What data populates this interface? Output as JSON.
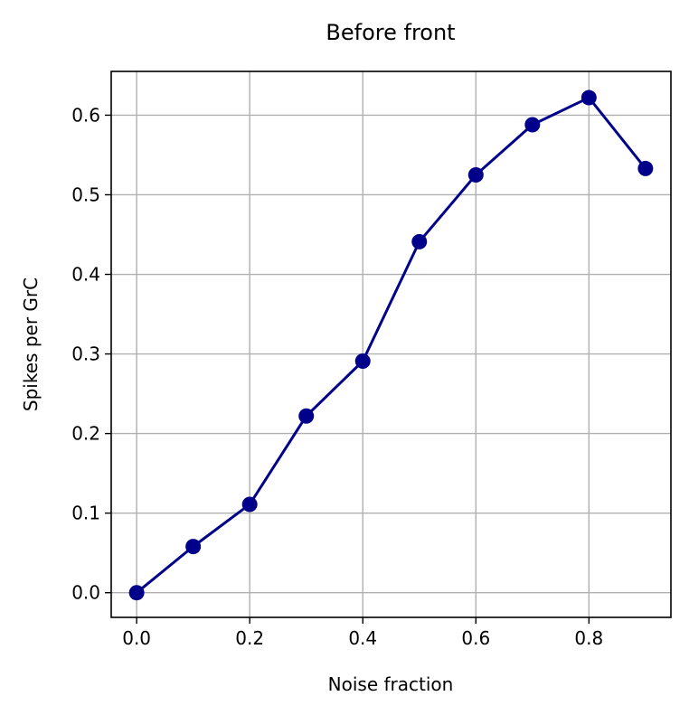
{
  "chart_data": {
    "type": "line",
    "title": "Before front",
    "xlabel": "Noise fraction",
    "ylabel": "Spikes per GrC",
    "xlim": [
      -0.045,
      0.945
    ],
    "ylim": [
      -0.031,
      0.655
    ],
    "x_ticks": [
      0.0,
      0.2,
      0.4,
      0.6,
      0.8
    ],
    "x_tick_labels": [
      "0.0",
      "0.2",
      "0.4",
      "0.6",
      "0.8"
    ],
    "y_ticks": [
      0.0,
      0.1,
      0.2,
      0.3,
      0.4,
      0.5,
      0.6
    ],
    "y_tick_labels": [
      "0.0",
      "0.1",
      "0.2",
      "0.3",
      "0.4",
      "0.5",
      "0.6"
    ],
    "grid": true,
    "line_color": "#00008b",
    "series": [
      {
        "x": [
          0.0,
          0.1,
          0.2,
          0.3,
          0.4,
          0.5,
          0.6,
          0.7,
          0.8,
          0.9
        ],
        "values": [
          0.0,
          0.058,
          0.111,
          0.222,
          0.291,
          0.441,
          0.525,
          0.588,
          0.622,
          0.533
        ]
      }
    ]
  }
}
